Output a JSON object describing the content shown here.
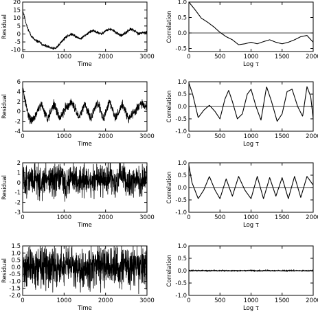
{
  "chart_data": [
    {
      "id": "p1",
      "type": "line",
      "kind": "residual",
      "seed": 11,
      "title": "",
      "xlabel": "Time",
      "ylabel": "Residual",
      "xlim": [
        0,
        3000
      ],
      "ylim": [
        -11,
        20
      ],
      "xticks": [
        0,
        1000,
        2000,
        3000
      ],
      "yticks": [
        -10,
        -5,
        0,
        5,
        10,
        15,
        20
      ],
      "series": [
        {
          "x": [
            0,
            40,
            100,
            200,
            300,
            400,
            500,
            600,
            700,
            800,
            900,
            1000,
            1100,
            1200,
            1300,
            1400,
            1500,
            1600,
            1700,
            1800,
            1900,
            2000,
            2100,
            2200,
            2300,
            2400,
            2500,
            2600,
            2700,
            2800,
            2900,
            3000
          ],
          "y": [
            15,
            11,
            5,
            -1,
            -4,
            -5,
            -7,
            -8,
            -9,
            -9,
            -6,
            -3,
            -1,
            0,
            -2,
            -3,
            -1,
            1,
            2,
            1,
            0,
            2,
            3,
            2,
            0,
            -1,
            1,
            3,
            2,
            0,
            1,
            0.5
          ],
          "noise": 0.6
        }
      ]
    },
    {
      "id": "p2",
      "type": "line",
      "kind": "correlation",
      "seed": 21,
      "title": "",
      "xlabel": "Log τ",
      "ylabel": "Correlation",
      "xlim": [
        0,
        2000
      ],
      "ylim": [
        -0.6,
        1.0
      ],
      "xticks": [
        0,
        500,
        1000,
        1500,
        2000
      ],
      "yticks": [
        -0.5,
        0.0,
        0.5,
        1.0
      ],
      "zero_line": true,
      "series": [
        {
          "x": [
            0,
            100,
            200,
            300,
            400,
            500,
            600,
            700,
            800,
            900,
            1000,
            1100,
            1200,
            1300,
            1400,
            1500,
            1600,
            1700,
            1800,
            1900,
            2000
          ],
          "y": [
            1.0,
            0.75,
            0.48,
            0.35,
            0.2,
            0.02,
            -0.12,
            -0.22,
            -0.38,
            -0.35,
            -0.3,
            -0.35,
            -0.28,
            -0.22,
            -0.3,
            -0.35,
            -0.3,
            -0.22,
            -0.12,
            -0.08,
            -0.3
          ],
          "noise": 0
        }
      ]
    },
    {
      "id": "p3",
      "type": "line",
      "kind": "residual",
      "seed": 31,
      "title": "",
      "xlabel": "Time",
      "ylabel": "Residual",
      "xlim": [
        0,
        3000
      ],
      "ylim": [
        -4,
        6
      ],
      "xticks": [
        0,
        1000,
        2000,
        3000
      ],
      "yticks": [
        -4,
        -2,
        0,
        2,
        4,
        6
      ],
      "series": [
        {
          "x": [
            0,
            30,
            100,
            200,
            300,
            450,
            600,
            750,
            900,
            1050,
            1200,
            1350,
            1500,
            1650,
            1800,
            1950,
            2100,
            2250,
            2400,
            2550,
            2700,
            2850,
            3000
          ],
          "y": [
            4.5,
            3.5,
            0.5,
            -2,
            -1,
            1.5,
            -1.5,
            1.5,
            -1.5,
            1,
            2,
            -1.5,
            1.5,
            -1.5,
            2,
            -1.5,
            2,
            -1.5,
            1.5,
            -1.5,
            0,
            1.5,
            1
          ],
          "noise": 0.6
        }
      ]
    },
    {
      "id": "p4",
      "type": "line",
      "kind": "correlation",
      "seed": 41,
      "title": "",
      "xlabel": "Log τ",
      "ylabel": "Correlation",
      "xlim": [
        0,
        2000
      ],
      "ylim": [
        -1.0,
        1.0
      ],
      "xticks": [
        0,
        500,
        1000,
        1500,
        2000
      ],
      "yticks": [
        -1.0,
        -0.5,
        0.0,
        0.5,
        1.0
      ],
      "zero_line": true,
      "series": [
        {
          "x": [
            0,
            60,
            150,
            240,
            330,
            420,
            500,
            580,
            640,
            700,
            780,
            860,
            940,
            1000,
            1080,
            1160,
            1250,
            1330,
            1420,
            1500,
            1580,
            1660,
            1750,
            1830,
            1900,
            1960,
            2000
          ],
          "y": [
            0.95,
            0.5,
            -0.45,
            -0.15,
            0.05,
            -0.2,
            -0.5,
            0.3,
            0.65,
            0.2,
            -0.5,
            -0.3,
            0.5,
            0.7,
            0.0,
            -0.55,
            0.8,
            0.2,
            -0.6,
            -0.3,
            0.6,
            0.7,
            0.0,
            -0.4,
            0.8,
            0.4,
            -0.5
          ],
          "noise": 0
        }
      ]
    },
    {
      "id": "p5",
      "type": "line",
      "kind": "residual",
      "seed": 51,
      "title": "",
      "xlabel": "Time",
      "ylabel": "Residual",
      "xlim": [
        0,
        3000
      ],
      "ylim": [
        -3,
        2
      ],
      "xticks": [
        0,
        1000,
        2000,
        3000
      ],
      "yticks": [
        -3,
        -2,
        -1,
        0,
        1,
        2
      ],
      "series": [
        {
          "x": [
            0,
            150,
            300,
            450,
            600,
            750,
            900,
            1050,
            1200,
            1350,
            1500,
            1650,
            1800,
            1950,
            2100,
            2250,
            2400,
            2550,
            2700,
            2850,
            3000
          ],
          "y": [
            0.3,
            0.1,
            0.6,
            -0.2,
            0.6,
            -0.2,
            0.5,
            -0.3,
            0.7,
            -0.2,
            0.5,
            -0.2,
            0.7,
            -0.1,
            0.7,
            -0.2,
            0.8,
            -0.3,
            0.6,
            -0.2,
            0.4
          ],
          "noise": 1.1
        }
      ]
    },
    {
      "id": "p6",
      "type": "line",
      "kind": "correlation",
      "seed": 61,
      "title": "",
      "xlabel": "Log τ",
      "ylabel": "Correlation",
      "xlim": [
        0,
        2000
      ],
      "ylim": [
        -1.0,
        1.0
      ],
      "xticks": [
        0,
        500,
        1000,
        1500,
        2000
      ],
      "yticks": [
        -1.0,
        -0.5,
        0.0,
        0.5,
        1.0
      ],
      "zero_line": true,
      "series": [
        {
          "x": [
            0,
            50,
            150,
            240,
            330,
            420,
            500,
            600,
            700,
            800,
            900,
            1000,
            1100,
            1200,
            1300,
            1400,
            1500,
            1600,
            1700,
            1800,
            1900,
            2000
          ],
          "y": [
            0.9,
            0.2,
            -0.45,
            -0.1,
            0.45,
            -0.1,
            -0.45,
            0.35,
            -0.35,
            0.45,
            -0.1,
            -0.45,
            0.45,
            -0.45,
            0.4,
            -0.35,
            0.4,
            -0.45,
            0.45,
            -0.4,
            0.45,
            0.1
          ],
          "noise": 0
        }
      ]
    },
    {
      "id": "p7",
      "type": "line",
      "kind": "residual",
      "seed": 71,
      "title": "",
      "xlabel": "Time",
      "ylabel": "Residual",
      "xlim": [
        0,
        3000
      ],
      "ylim": [
        -2.0,
        1.5
      ],
      "xticks": [
        0,
        1000,
        2000,
        3000
      ],
      "yticks": [
        -2.0,
        -1.5,
        -1.0,
        -0.5,
        0.0,
        0.5,
        1.0,
        1.5
      ],
      "series": [
        {
          "x": [
            0,
            3000
          ],
          "y": [
            0.0,
            0.0
          ],
          "noise": 1.0
        }
      ]
    },
    {
      "id": "p8",
      "type": "line",
      "kind": "correlation",
      "seed": 81,
      "title": "",
      "xlabel": "Log τ",
      "ylabel": "Correlation",
      "xlim": [
        0,
        2000
      ],
      "ylim": [
        -1.0,
        1.0
      ],
      "xticks": [
        0,
        500,
        1000,
        1500,
        2000
      ],
      "yticks": [
        -1.0,
        -0.5,
        0.0,
        0.5,
        1.0
      ],
      "zero_line": true,
      "series": [
        {
          "x": [
            0,
            2000
          ],
          "y": [
            0.0,
            0.0
          ],
          "noise": 0.02
        }
      ]
    }
  ]
}
